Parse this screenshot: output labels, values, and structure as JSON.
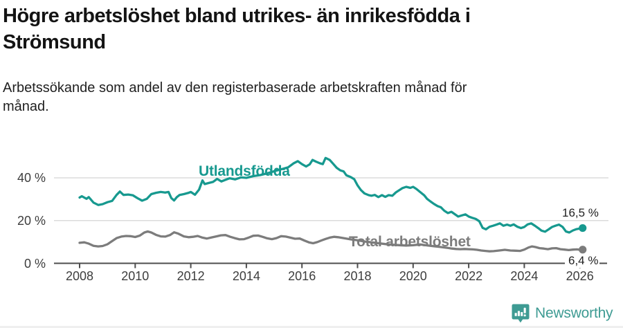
{
  "header": {
    "title": "Högre arbetslöshet bland utrikes- än inrikesfödda i\nStrömsund",
    "subtitle": "Arbetssökande som andel av den registerbaserade arbetskraften månad för\nmånad."
  },
  "footer": {
    "brand": "Newsworthy",
    "logo_icon": "bar-chart-speech-bubble-icon",
    "brand_color": "#3e9b93"
  },
  "colors": {
    "accent_teal": "#17998f",
    "series_gray": "#7c7c7c",
    "grid": "#dbdbdb",
    "axis": "#4d4d4d",
    "tick_text": "#3d3d3d",
    "title_text": "#141414"
  },
  "chart_data": {
    "type": "line",
    "title": "Högre arbetslöshet bland utrikes- än inrikesfödda i Strömsund",
    "subtitle": "Arbetssökande som andel av den registerbaserade arbetskraften månad för månad.",
    "xlabel": "",
    "ylabel": "",
    "x_range": [
      2007.9,
      2026.4
    ],
    "ylim": [
      0,
      52
    ],
    "grid": "horizontal",
    "legend_position": "inline-labels",
    "x_ticks": [
      2008,
      2010,
      2012,
      2014,
      2016,
      2018,
      2020,
      2022,
      2024,
      2026
    ],
    "y_ticks": [
      {
        "value": 0,
        "label": "0 %"
      },
      {
        "value": 20,
        "label": "20 %"
      },
      {
        "value": 40,
        "label": "40 %"
      }
    ],
    "series": [
      {
        "name": "Utlandsfödda",
        "color": "#17998f",
        "end_label": "16,5 %",
        "end_value": 16.5,
        "points": [
          [
            2008.0,
            30.8
          ],
          [
            2008.08,
            31.4
          ],
          [
            2008.25,
            30.2
          ],
          [
            2008.33,
            31.0
          ],
          [
            2008.5,
            28.4
          ],
          [
            2008.67,
            27.3
          ],
          [
            2008.83,
            27.7
          ],
          [
            2009.0,
            28.6
          ],
          [
            2009.17,
            29.2
          ],
          [
            2009.33,
            32.0
          ],
          [
            2009.45,
            33.6
          ],
          [
            2009.58,
            32.0
          ],
          [
            2009.75,
            32.2
          ],
          [
            2009.92,
            31.8
          ],
          [
            2010.08,
            30.5
          ],
          [
            2010.25,
            29.3
          ],
          [
            2010.42,
            30.2
          ],
          [
            2010.58,
            32.4
          ],
          [
            2010.75,
            33.0
          ],
          [
            2010.92,
            33.4
          ],
          [
            2011.08,
            33.1
          ],
          [
            2011.2,
            33.4
          ],
          [
            2011.3,
            30.5
          ],
          [
            2011.4,
            29.4
          ],
          [
            2011.5,
            31.0
          ],
          [
            2011.6,
            32.0
          ],
          [
            2011.75,
            32.4
          ],
          [
            2011.9,
            32.9
          ],
          [
            2012.0,
            33.4
          ],
          [
            2012.15,
            32.1
          ],
          [
            2012.3,
            34.5
          ],
          [
            2012.42,
            38.8
          ],
          [
            2012.5,
            37.1
          ],
          [
            2012.65,
            37.6
          ],
          [
            2012.8,
            38.1
          ],
          [
            2012.95,
            39.5
          ],
          [
            2013.1,
            38.3
          ],
          [
            2013.25,
            39.1
          ],
          [
            2013.4,
            39.8
          ],
          [
            2013.6,
            39.3
          ],
          [
            2013.8,
            40.2
          ],
          [
            2014.0,
            40.0
          ],
          [
            2014.25,
            40.8
          ],
          [
            2014.5,
            41.3
          ],
          [
            2014.75,
            42.1
          ],
          [
            2015.0,
            43.1
          ],
          [
            2015.25,
            44.0
          ],
          [
            2015.5,
            44.9
          ],
          [
            2015.7,
            46.8
          ],
          [
            2015.85,
            47.8
          ],
          [
            2016.0,
            46.4
          ],
          [
            2016.15,
            45.3
          ],
          [
            2016.28,
            46.3
          ],
          [
            2016.38,
            48.4
          ],
          [
            2016.5,
            47.6
          ],
          [
            2016.65,
            46.8
          ],
          [
            2016.75,
            46.4
          ],
          [
            2016.85,
            49.3
          ],
          [
            2017.0,
            48.4
          ],
          [
            2017.1,
            46.9
          ],
          [
            2017.25,
            44.7
          ],
          [
            2017.38,
            43.5
          ],
          [
            2017.5,
            43.0
          ],
          [
            2017.6,
            41.2
          ],
          [
            2017.75,
            40.4
          ],
          [
            2017.88,
            39.4
          ],
          [
            2018.0,
            36.5
          ],
          [
            2018.12,
            34.3
          ],
          [
            2018.25,
            32.7
          ],
          [
            2018.4,
            31.9
          ],
          [
            2018.5,
            31.6
          ],
          [
            2018.62,
            32.0
          ],
          [
            2018.75,
            31.0
          ],
          [
            2018.88,
            31.9
          ],
          [
            2019.0,
            31.1
          ],
          [
            2019.12,
            31.9
          ],
          [
            2019.25,
            31.6
          ],
          [
            2019.38,
            33.2
          ],
          [
            2019.5,
            34.2
          ],
          [
            2019.62,
            35.2
          ],
          [
            2019.75,
            35.8
          ],
          [
            2019.9,
            35.3
          ],
          [
            2020.0,
            35.8
          ],
          [
            2020.12,
            34.8
          ],
          [
            2020.25,
            33.4
          ],
          [
            2020.4,
            31.8
          ],
          [
            2020.5,
            30.2
          ],
          [
            2020.62,
            29.0
          ],
          [
            2020.75,
            27.8
          ],
          [
            2020.88,
            26.8
          ],
          [
            2021.0,
            26.2
          ],
          [
            2021.12,
            24.6
          ],
          [
            2021.25,
            23.5
          ],
          [
            2021.38,
            24.1
          ],
          [
            2021.5,
            23.0
          ],
          [
            2021.62,
            21.9
          ],
          [
            2021.75,
            22.4
          ],
          [
            2021.88,
            22.9
          ],
          [
            2022.0,
            21.9
          ],
          [
            2022.12,
            21.3
          ],
          [
            2022.25,
            20.8
          ],
          [
            2022.38,
            19.7
          ],
          [
            2022.5,
            16.6
          ],
          [
            2022.62,
            15.9
          ],
          [
            2022.75,
            17.1
          ],
          [
            2022.88,
            17.6
          ],
          [
            2023.0,
            18.1
          ],
          [
            2023.12,
            18.7
          ],
          [
            2023.25,
            17.6
          ],
          [
            2023.38,
            18.1
          ],
          [
            2023.5,
            17.6
          ],
          [
            2023.62,
            18.2
          ],
          [
            2023.75,
            17.1
          ],
          [
            2023.88,
            16.5
          ],
          [
            2024.0,
            17.0
          ],
          [
            2024.12,
            18.2
          ],
          [
            2024.25,
            18.7
          ],
          [
            2024.38,
            17.6
          ],
          [
            2024.5,
            16.5
          ],
          [
            2024.62,
            15.3
          ],
          [
            2024.75,
            14.8
          ],
          [
            2024.88,
            15.9
          ],
          [
            2025.0,
            17.0
          ],
          [
            2025.12,
            17.6
          ],
          [
            2025.25,
            18.1
          ],
          [
            2025.38,
            17.0
          ],
          [
            2025.5,
            14.9
          ],
          [
            2025.62,
            14.4
          ],
          [
            2025.75,
            15.4
          ],
          [
            2025.88,
            16.0
          ],
          [
            2026.0,
            16.3
          ],
          [
            2026.1,
            16.5
          ]
        ]
      },
      {
        "name": "Total arbetslöshet",
        "color": "#7c7c7c",
        "end_label": "6,4 %",
        "end_value": 6.4,
        "points": [
          [
            2008.0,
            9.6
          ],
          [
            2008.17,
            9.8
          ],
          [
            2008.33,
            9.2
          ],
          [
            2008.5,
            8.2
          ],
          [
            2008.67,
            7.9
          ],
          [
            2008.83,
            8.1
          ],
          [
            2009.0,
            8.9
          ],
          [
            2009.17,
            10.4
          ],
          [
            2009.33,
            11.8
          ],
          [
            2009.5,
            12.5
          ],
          [
            2009.67,
            12.8
          ],
          [
            2009.83,
            12.7
          ],
          [
            2010.0,
            12.3
          ],
          [
            2010.17,
            13.0
          ],
          [
            2010.33,
            14.4
          ],
          [
            2010.45,
            14.9
          ],
          [
            2010.58,
            14.4
          ],
          [
            2010.75,
            13.3
          ],
          [
            2010.92,
            12.6
          ],
          [
            2011.08,
            12.5
          ],
          [
            2011.25,
            13.2
          ],
          [
            2011.4,
            14.5
          ],
          [
            2011.55,
            13.9
          ],
          [
            2011.75,
            12.6
          ],
          [
            2011.92,
            12.2
          ],
          [
            2012.08,
            12.4
          ],
          [
            2012.25,
            12.8
          ],
          [
            2012.42,
            12.0
          ],
          [
            2012.58,
            11.6
          ],
          [
            2012.75,
            12.1
          ],
          [
            2012.92,
            12.6
          ],
          [
            2013.08,
            13.1
          ],
          [
            2013.25,
            13.2
          ],
          [
            2013.42,
            12.4
          ],
          [
            2013.58,
            11.8
          ],
          [
            2013.75,
            11.2
          ],
          [
            2013.92,
            11.3
          ],
          [
            2014.08,
            12.0
          ],
          [
            2014.25,
            12.9
          ],
          [
            2014.42,
            13.0
          ],
          [
            2014.58,
            12.4
          ],
          [
            2014.75,
            11.7
          ],
          [
            2014.92,
            11.3
          ],
          [
            2015.08,
            11.8
          ],
          [
            2015.25,
            12.7
          ],
          [
            2015.42,
            12.5
          ],
          [
            2015.58,
            12.0
          ],
          [
            2015.75,
            11.5
          ],
          [
            2015.92,
            11.6
          ],
          [
            2016.1,
            10.6
          ],
          [
            2016.25,
            9.8
          ],
          [
            2016.4,
            9.4
          ],
          [
            2016.55,
            9.9
          ],
          [
            2016.7,
            10.7
          ],
          [
            2016.85,
            11.4
          ],
          [
            2017.0,
            12.0
          ],
          [
            2017.15,
            12.4
          ],
          [
            2017.3,
            12.2
          ],
          [
            2017.5,
            11.8
          ],
          [
            2017.75,
            11.2
          ],
          [
            2018.0,
            10.8
          ],
          [
            2018.25,
            10.2
          ],
          [
            2018.5,
            9.8
          ],
          [
            2018.75,
            9.4
          ],
          [
            2019.0,
            9.0
          ],
          [
            2019.25,
            8.7
          ],
          [
            2019.5,
            8.5
          ],
          [
            2019.75,
            8.3
          ],
          [
            2020.0,
            8.5
          ],
          [
            2020.25,
            8.8
          ],
          [
            2020.5,
            8.4
          ],
          [
            2020.75,
            8.0
          ],
          [
            2021.0,
            7.6
          ],
          [
            2021.25,
            7.2
          ],
          [
            2021.4,
            6.9
          ],
          [
            2021.55,
            6.7
          ],
          [
            2021.7,
            6.6
          ],
          [
            2021.85,
            6.7
          ],
          [
            2022.0,
            6.6
          ],
          [
            2022.15,
            6.5
          ],
          [
            2022.3,
            6.3
          ],
          [
            2022.45,
            6.0
          ],
          [
            2022.6,
            5.8
          ],
          [
            2022.75,
            5.6
          ],
          [
            2022.9,
            5.7
          ],
          [
            2023.1,
            6.0
          ],
          [
            2023.3,
            6.3
          ],
          [
            2023.5,
            6.0
          ],
          [
            2023.7,
            5.9
          ],
          [
            2023.85,
            5.8
          ],
          [
            2024.0,
            6.4
          ],
          [
            2024.15,
            7.4
          ],
          [
            2024.28,
            7.9
          ],
          [
            2024.4,
            7.6
          ],
          [
            2024.55,
            7.1
          ],
          [
            2024.7,
            6.9
          ],
          [
            2024.85,
            6.6
          ],
          [
            2025.0,
            7.0
          ],
          [
            2025.15,
            7.1
          ],
          [
            2025.3,
            6.6
          ],
          [
            2025.45,
            6.4
          ],
          [
            2025.6,
            6.2
          ],
          [
            2025.75,
            6.4
          ],
          [
            2025.9,
            6.5
          ],
          [
            2026.0,
            6.3
          ],
          [
            2026.1,
            6.4
          ]
        ]
      }
    ]
  }
}
